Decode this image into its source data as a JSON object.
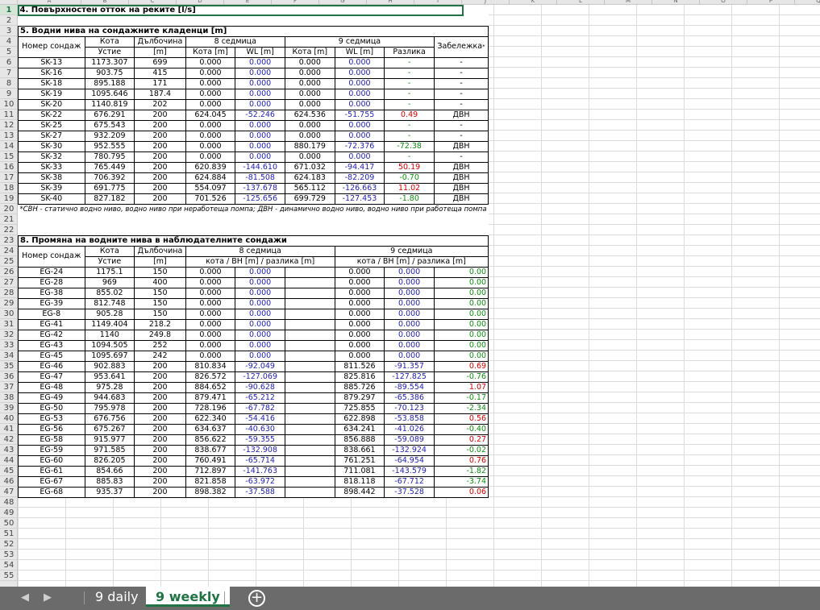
{
  "columns": [
    "A",
    "B",
    "C",
    "D",
    "E",
    "F",
    "G",
    "H",
    "I",
    "J",
    "K",
    "L",
    "M",
    "N",
    "O",
    "P",
    "Q"
  ],
  "sheet": {
    "s4_title": "4. Повърхностен отток на реките [l/s]",
    "s5_title": "5. Водни нива на сондажните кладенци [m]",
    "s5_headers": {
      "num": "Номер сондаж",
      "kota": "Кота",
      "ustie": "Устие",
      "depth": "Дълбочина",
      "depth_unit": "[m]",
      "week8": "8 седмица",
      "week9": "9 седмица",
      "kota_m": "Кота [m]",
      "wl_m": "WL [m]",
      "diff": "Разлика",
      "note": "Забележка",
      "note_mark": "*"
    },
    "s5_rows": [
      [
        "SK-13",
        "1173.307",
        "699",
        "0.000",
        "0.000",
        "0.000",
        "0.000",
        "-",
        "-"
      ],
      [
        "SK-16",
        "903.75",
        "415",
        "0.000",
        "0.000",
        "0.000",
        "0.000",
        "-",
        "-"
      ],
      [
        "SK-18",
        "895.188",
        "171",
        "0.000",
        "0.000",
        "0.000",
        "0.000",
        "-",
        "-"
      ],
      [
        "SK-19",
        "1095.646",
        "187.4",
        "0.000",
        "0.000",
        "0.000",
        "0.000",
        "-",
        "-"
      ],
      [
        "SK-20",
        "1140.819",
        "202",
        "0.000",
        "0.000",
        "0.000",
        "0.000",
        "-",
        "-"
      ],
      [
        "SK-22",
        "676.291",
        "200",
        "624.045",
        "-52.246",
        "624.536",
        "-51.755",
        "0.49",
        "ДВН"
      ],
      [
        "SK-25",
        "675.543",
        "200",
        "0.000",
        "0.000",
        "0.000",
        "0.000",
        "-",
        "-"
      ],
      [
        "SK-27",
        "932.209",
        "200",
        "0.000",
        "0.000",
        "0.000",
        "0.000",
        "-",
        "-"
      ],
      [
        "SK-30",
        "952.555",
        "200",
        "0.000",
        "0.000",
        "880.179",
        "-72.376",
        "-72.38",
        "ДВН"
      ],
      [
        "SK-32",
        "780.795",
        "200",
        "0.000",
        "0.000",
        "0.000",
        "0.000",
        "-",
        "-"
      ],
      [
        "SK-33",
        "765.449",
        "200",
        "620.839",
        "-144.610",
        "671.032",
        "-94.417",
        "50.19",
        "ДВН"
      ],
      [
        "SK-38",
        "706.392",
        "200",
        "624.884",
        "-81.508",
        "624.183",
        "-82.209",
        "-0.70",
        "ДВН"
      ],
      [
        "SK-39",
        "691.775",
        "200",
        "554.097",
        "-137.678",
        "565.112",
        "-126.663",
        "11.02",
        "ДВН"
      ],
      [
        "SK-40",
        "827.182",
        "200",
        "701.526",
        "-125.656",
        "699.729",
        "-127.453",
        "-1.80",
        "ДВН"
      ]
    ],
    "s5_footnote": "*СВН - статично водно ниво, водно ниво при неработеща помпа; ДВН - динамично водно ниво, водно ниво при работеща помпа",
    "s8_title": "8. Промяна на водните нива в наблюдателните сондажи",
    "s8_headers": {
      "num": "Номер сондаж",
      "kota": "Кота",
      "ustie": "Устие",
      "depth": "Дълбочина",
      "depth_unit": "[m]",
      "week8": "8 седмица",
      "week9": "9 седмица",
      "sub8": "кота / ВН [m] / разлика [m]",
      "sub9": "кота / ВН [m] / разлика [m]"
    },
    "s8_rows": [
      [
        "EG-24",
        "1175.1",
        "150",
        "0.000",
        "0.000",
        "0.000",
        "0.000",
        "0.00"
      ],
      [
        "EG-28",
        "969",
        "400",
        "0.000",
        "0.000",
        "0.000",
        "0.000",
        "0.00"
      ],
      [
        "EG-38",
        "855.02",
        "150",
        "0.000",
        "0.000",
        "0.000",
        "0.000",
        "0.00"
      ],
      [
        "EG-39",
        "812.748",
        "150",
        "0.000",
        "0.000",
        "0.000",
        "0.000",
        "0.00"
      ],
      [
        "EG-8",
        "905.28",
        "150",
        "0.000",
        "0.000",
        "0.000",
        "0.000",
        "0.00"
      ],
      [
        "EG-41",
        "1149.404",
        "218.2",
        "0.000",
        "0.000",
        "0.000",
        "0.000",
        "0.00"
      ],
      [
        "EG-42",
        "1140",
        "249.8",
        "0.000",
        "0.000",
        "0.000",
        "0.000",
        "0.00"
      ],
      [
        "EG-43",
        "1094.505",
        "252",
        "0.000",
        "0.000",
        "0.000",
        "0.000",
        "0.00"
      ],
      [
        "EG-45",
        "1095.697",
        "242",
        "0.000",
        "0.000",
        "0.000",
        "0.000",
        "0.00"
      ],
      [
        "EG-46",
        "902.883",
        "200",
        "810.834",
        "-92.049",
        "811.526",
        "-91.357",
        "0.69"
      ],
      [
        "EG-47",
        "953.641",
        "200",
        "826.572",
        "-127.069",
        "825.816",
        "-127.825",
        "-0.76"
      ],
      [
        "EG-48",
        "975.28",
        "200",
        "884.652",
        "-90.628",
        "885.726",
        "-89.554",
        "1.07"
      ],
      [
        "EG-49",
        "944.683",
        "200",
        "879.471",
        "-65.212",
        "879.297",
        "-65.386",
        "-0.17"
      ],
      [
        "EG-50",
        "795.978",
        "200",
        "728.196",
        "-67.782",
        "725.855",
        "-70.123",
        "-2.34"
      ],
      [
        "EG-53",
        "676.756",
        "200",
        "622.340",
        "-54.416",
        "622.898",
        "-53.858",
        "0.56"
      ],
      [
        "EG-56",
        "675.267",
        "200",
        "634.637",
        "-40.630",
        "634.241",
        "-41.026",
        "-0.40"
      ],
      [
        "EG-58",
        "915.977",
        "200",
        "856.622",
        "-59.355",
        "856.888",
        "-59.089",
        "0.27"
      ],
      [
        "EG-59",
        "971.585",
        "200",
        "838.677",
        "-132.908",
        "838.661",
        "-132.924",
        "-0.02"
      ],
      [
        "EG-60",
        "826.205",
        "200",
        "760.491",
        "-65.714",
        "761.251",
        "-64.954",
        "0.76"
      ],
      [
        "EG-61",
        "854.66",
        "200",
        "712.897",
        "-141.763",
        "711.081",
        "-143.579",
        "-1.82"
      ],
      [
        "EG-67",
        "885.83",
        "200",
        "821.858",
        "-63.972",
        "818.118",
        "-67.712",
        "-3.74"
      ],
      [
        "EG-68",
        "935.37",
        "200",
        "898.382",
        "-37.588",
        "898.442",
        "-37.528",
        "0.06"
      ]
    ]
  },
  "tabs": [
    {
      "label": "9 daily",
      "active": false
    },
    {
      "label": "9 weekly",
      "active": true
    }
  ],
  "add_sheet": "+"
}
